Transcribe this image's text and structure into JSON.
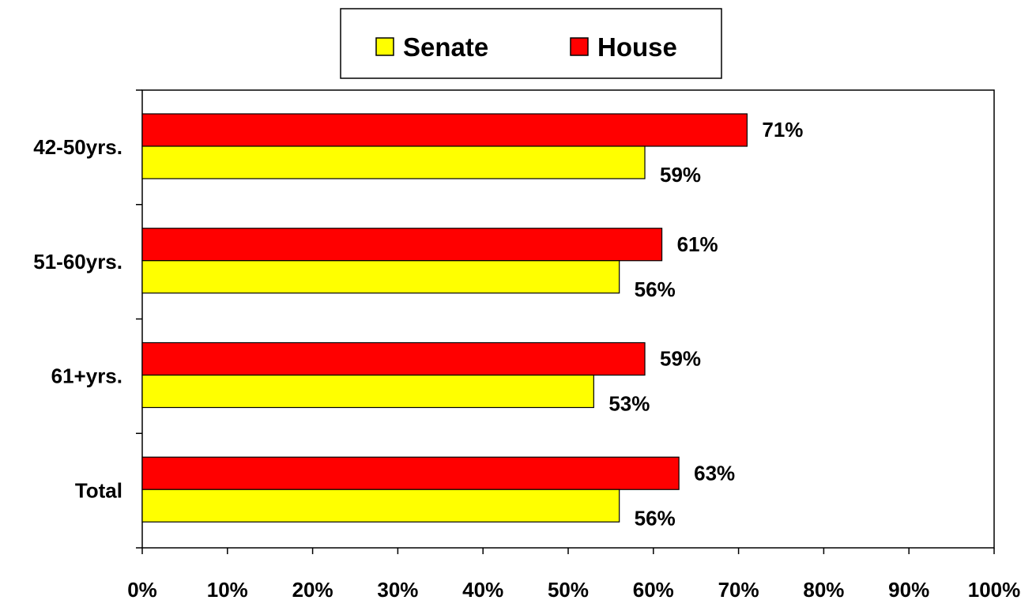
{
  "chart_data": {
    "type": "bar",
    "orientation": "horizontal",
    "categories": [
      "42-50yrs.",
      "51-60yrs.",
      "61+yrs.",
      "Total"
    ],
    "series": [
      {
        "name": "House",
        "values": [
          71,
          61,
          59,
          63
        ],
        "value_labels": [
          "71%",
          "61%",
          "59%",
          "63%"
        ],
        "color": "#ff0000"
      },
      {
        "name": "Senate",
        "values": [
          59,
          56,
          53,
          56
        ],
        "value_labels": [
          "59%",
          "56%",
          "53%",
          "56%"
        ],
        "color": "#ffff00"
      }
    ],
    "xlim": [
      0,
      100
    ],
    "x_ticks": [
      "0%",
      "10%",
      "20%",
      "30%",
      "40%",
      "50%",
      "60%",
      "70%",
      "80%",
      "90%",
      "100%"
    ],
    "grid": false,
    "legend": {
      "position": "top-center",
      "entries": [
        {
          "label": "Senate",
          "color": "#ffff00"
        },
        {
          "label": "House",
          "color": "#ff0000"
        }
      ]
    }
  }
}
